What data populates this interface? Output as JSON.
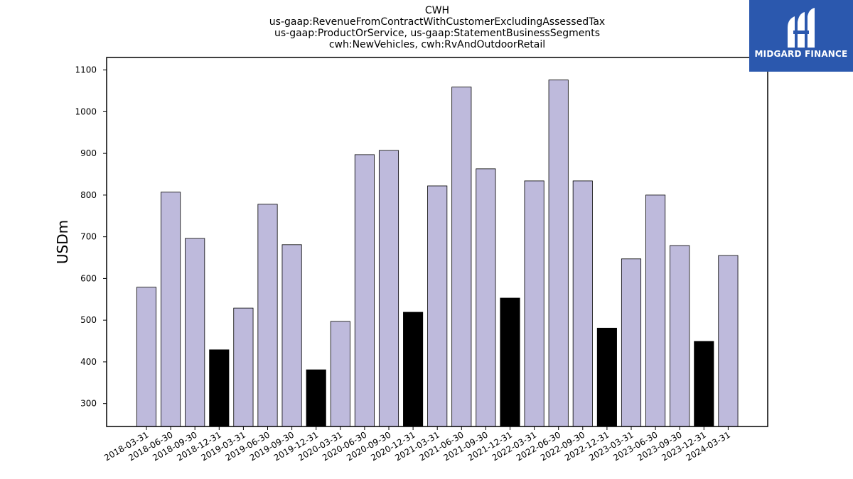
{
  "chart_data": {
    "type": "bar",
    "title_lines": [
      "CWH",
      "us-gaap:RevenueFromContractWithCustomerExcludingAssessedTax",
      "us-gaap:ProductOrService, us-gaap:StatementBusinessSegments",
      "cwh:NewVehicles, cwh:RvAndOutdoorRetail"
    ],
    "ylabel": "USDm",
    "ylim": [
      245,
      1130
    ],
    "yticks": [
      300,
      400,
      500,
      600,
      700,
      800,
      900,
      1000,
      1100
    ],
    "categories": [
      "2018-03-31",
      "2018-06-30",
      "2018-09-30",
      "2018-12-31",
      "2019-03-31",
      "2019-06-30",
      "2019-09-30",
      "2019-12-31",
      "2020-03-31",
      "2020-06-30",
      "2020-09-30",
      "2020-12-31",
      "2021-03-31",
      "2021-06-30",
      "2021-09-30",
      "2021-12-31",
      "2022-03-31",
      "2022-06-30",
      "2022-09-30",
      "2022-12-31",
      "2023-03-31",
      "2023-06-30",
      "2023-09-30",
      "2023-12-31",
      "2024-03-31"
    ],
    "values": [
      579,
      807,
      696,
      429,
      529,
      778,
      681,
      381,
      497,
      897,
      907,
      519,
      822,
      1059,
      863,
      553,
      834,
      1076,
      834,
      481,
      647,
      800,
      679,
      449,
      655
    ],
    "highlight": [
      false,
      false,
      false,
      true,
      false,
      false,
      false,
      true,
      false,
      false,
      false,
      true,
      false,
      false,
      false,
      true,
      false,
      false,
      false,
      true,
      false,
      false,
      false,
      true,
      false
    ],
    "colors": {
      "bar": "#bebadc",
      "highlight": "#000000",
      "edge": "#000000"
    },
    "grid": false
  },
  "logo": {
    "text": "MIDGARD FINANCE",
    "background": "#2b58ae"
  }
}
